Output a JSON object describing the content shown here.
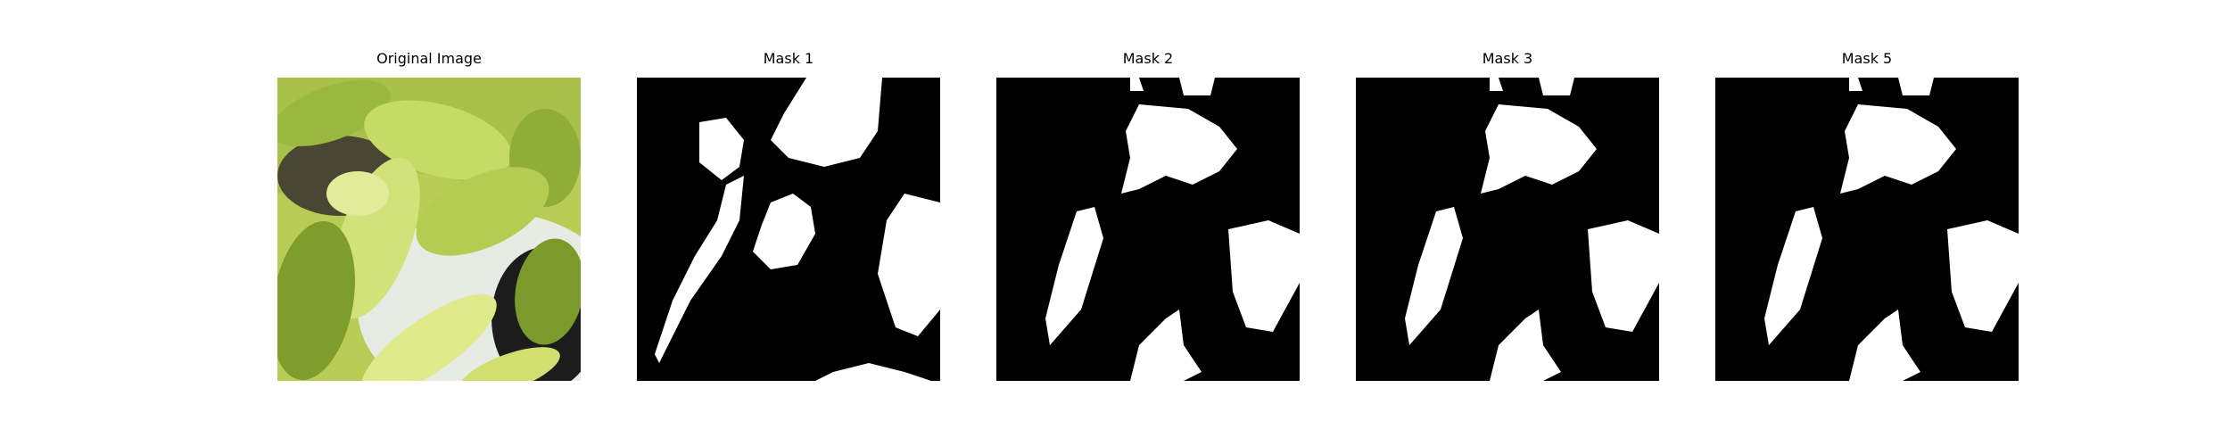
{
  "panels": [
    {
      "title": "Original Image",
      "kind": "photo"
    },
    {
      "title": "Mask 1",
      "kind": "mask"
    },
    {
      "title": "Mask 2",
      "kind": "mask"
    },
    {
      "title": "Mask 3",
      "kind": "mask"
    },
    {
      "title": "Mask 5",
      "kind": "mask"
    }
  ],
  "colors": {
    "mask_background": "#000000",
    "mask_foreground": "#ffffff",
    "leaf_light": "#c8dc5a",
    "leaf_dark": "#6f8f1e",
    "soil": "#4a4634",
    "pot": "#e6ebe4"
  }
}
